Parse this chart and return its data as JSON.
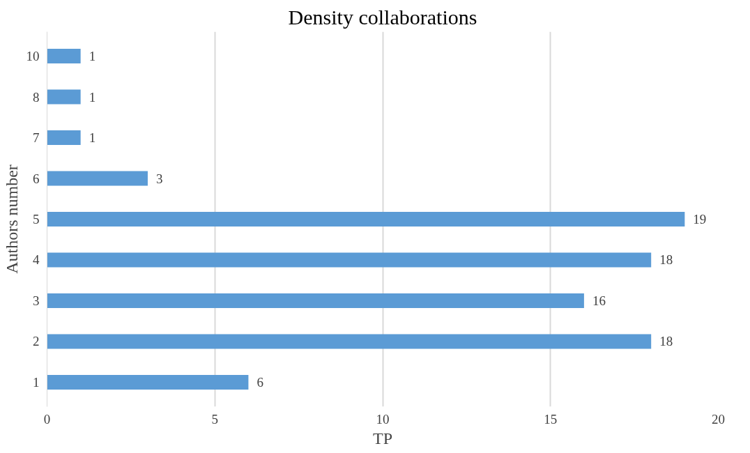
{
  "chart_data": {
    "type": "bar",
    "orientation": "horizontal",
    "title": "Density collaborations",
    "xlabel": "TP",
    "ylabel": "Authors number",
    "categories": [
      "10",
      "8",
      "7",
      "6",
      "5",
      "4",
      "3",
      "2",
      "1"
    ],
    "values": [
      1,
      1,
      1,
      3,
      19,
      18,
      16,
      18,
      6
    ],
    "color": "#5b9bd5",
    "xlim": [
      0,
      20
    ],
    "xticks": [
      0,
      5,
      10,
      15,
      20
    ],
    "grid": "x",
    "data_labels": true
  }
}
